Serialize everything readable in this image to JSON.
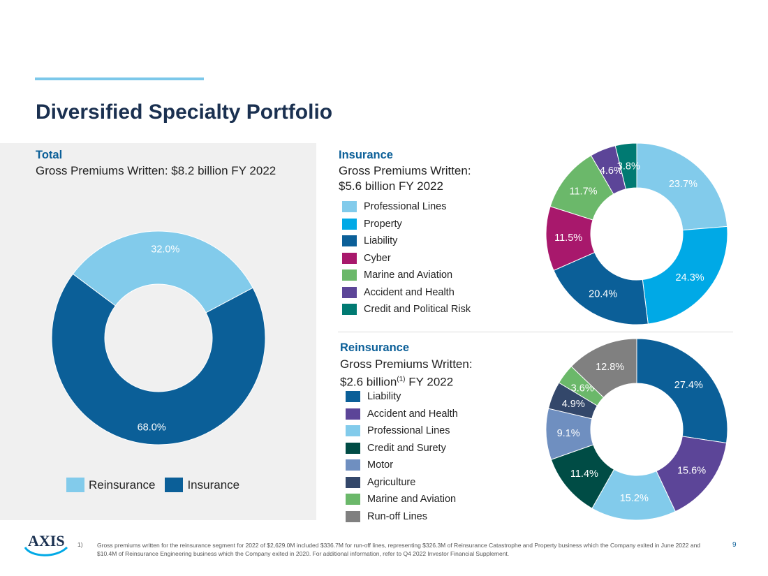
{
  "title": "Diversified Specialty Portfolio",
  "total": {
    "title": "Total",
    "subtitle": "Gross Premiums Written: $8.2 billion FY 2022"
  },
  "insurance": {
    "title": "Insurance",
    "subtitle_line1": "Gross Premiums Written:",
    "subtitle_line2": "$5.6 billion FY 2022"
  },
  "reinsurance": {
    "title": "Reinsurance",
    "subtitle_line1": "Gross Premiums Written:",
    "subtitle_line2a": "$2.6 billion",
    "subtitle_sup": "(1)",
    "subtitle_line2b": " FY 2022"
  },
  "chart_data": [
    {
      "type": "pie",
      "title": "Total",
      "categories": [
        "Insurance",
        "Reinsurance"
      ],
      "values": [
        68.0,
        32.0
      ],
      "labels": [
        "68.0%",
        "32.0%"
      ],
      "colors": [
        "#0b5f98",
        "#82cbeb"
      ],
      "start_at": "32.0% segment begins near top-right, clockwise",
      "legend": "bottom",
      "legend_entries": [
        {
          "label": "Reinsurance",
          "color": "#82cbeb"
        },
        {
          "label": "Insurance",
          "color": "#0b5f98"
        }
      ]
    },
    {
      "type": "pie",
      "title": "Insurance",
      "categories": [
        "Professional Lines",
        "Property",
        "Liability",
        "Cyber",
        "Marine and Aviation",
        "Accident and Health",
        "Credit and Political Risk"
      ],
      "values": [
        23.7,
        24.3,
        20.4,
        11.5,
        11.7,
        4.6,
        3.8
      ],
      "labels": [
        "23.7%",
        "24.3%",
        "20.4%",
        "11.5%",
        "11.7%",
        "4.6%",
        "3.8%"
      ],
      "colors": [
        "#82cbeb",
        "#00a9e6",
        "#0b5f98",
        "#a8186c",
        "#6bb86a",
        "#5c4598",
        "#007a72"
      ],
      "legend": "left"
    },
    {
      "type": "pie",
      "title": "Reinsurance",
      "categories": [
        "Liability",
        "Accident and Health",
        "Professional Lines",
        "Credit and Surety",
        "Motor",
        "Agriculture",
        "Marine and Aviation",
        "Run-off Lines"
      ],
      "values": [
        27.4,
        15.6,
        15.2,
        11.4,
        9.1,
        4.9,
        3.6,
        12.8
      ],
      "labels": [
        "27.4%",
        "15.6%",
        "15.2%",
        "11.4%",
        "9.1%",
        "4.9%",
        "3.6%",
        "12.8%"
      ],
      "colors": [
        "#0b5f98",
        "#5c4598",
        "#82cbeb",
        "#004c45",
        "#6f8fc0",
        "#33476a",
        "#6bb86a",
        "#808080"
      ],
      "legend": "left"
    }
  ],
  "footnote": {
    "number": "1)",
    "text": "Gross premiums written for the reinsurance segment for 2022 of $2,629.0M included $336.7M for run-off lines, representing $326.3M of Reinsurance Catastrophe and Property business which the Company exited in June 2022 and $10.4M of Reinsurance Engineering business which the Company exited in 2020. For additional information, refer to Q4 2022 Investor Financial Supplement."
  },
  "page_number": "9",
  "logo": {
    "text": "AXIS"
  }
}
